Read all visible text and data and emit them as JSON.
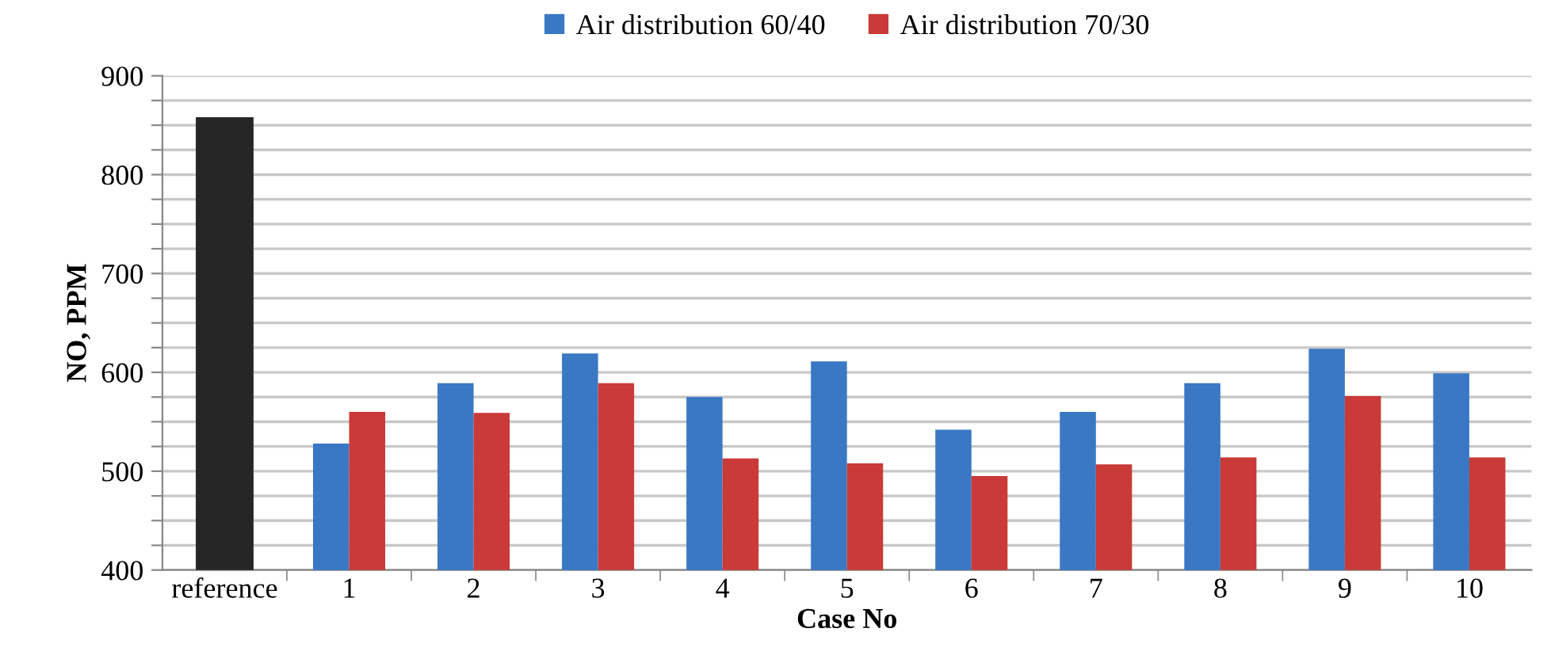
{
  "chart_data": {
    "type": "bar",
    "xlabel": "Case No",
    "ylabel": "NO, PPM",
    "categories": [
      "reference",
      "1",
      "2",
      "3",
      "4",
      "5",
      "6",
      "7",
      "8",
      "9",
      "10"
    ],
    "series": [
      {
        "color": "#262626",
        "values": [
          858,
          null,
          null,
          null,
          null,
          null,
          null,
          null,
          null,
          null,
          null
        ]
      },
      {
        "name": "Air distribution 60/40",
        "color": "#3a78c4",
        "values": [
          null,
          528,
          589,
          619,
          575,
          611,
          542,
          560,
          589,
          624,
          599
        ]
      },
      {
        "name": "Air distribution 70/30",
        "color": "#c93a38",
        "values": [
          null,
          560,
          559,
          589,
          513,
          508,
          495,
          507,
          514,
          576,
          514
        ]
      }
    ],
    "ylim": [
      400,
      900
    ],
    "yticks": [
      400,
      {
        "value": 425,
        "label": null
      },
      {
        "value": 450,
        "label": null
      },
      {
        "value": 475,
        "label": null
      },
      500,
      {
        "value": 525,
        "label": null
      },
      {
        "value": 550,
        "label": null
      },
      {
        "value": 575,
        "label": null
      },
      600,
      {
        "value": 625,
        "label": null
      },
      {
        "value": 650,
        "label": null
      },
      {
        "value": 675,
        "label": null
      },
      700,
      {
        "value": 725,
        "label": null
      },
      {
        "value": 750,
        "label": null
      },
      {
        "value": 775,
        "label": null
      },
      800,
      {
        "value": 825,
        "label": null
      },
      {
        "value": 850,
        "label": null
      },
      {
        "value": 875,
        "label": null
      },
      900
    ],
    "grid": "y",
    "legend": "top"
  }
}
